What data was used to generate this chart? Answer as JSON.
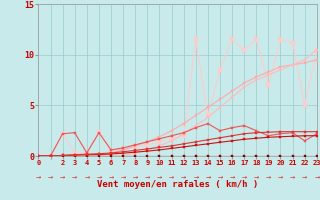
{
  "x": [
    0,
    1,
    2,
    3,
    4,
    5,
    6,
    7,
    8,
    9,
    10,
    11,
    12,
    13,
    14,
    15,
    16,
    17,
    18,
    19,
    20,
    21,
    22,
    23
  ],
  "bg_color": "#c8eaea",
  "grid_color": "#99cccc",
  "xlabel": "Vent moyen/en rafales ( km/h )",
  "yticks": [
    0,
    5,
    10,
    15
  ],
  "ylim": [
    0,
    15
  ],
  "xlim": [
    0,
    23
  ],
  "lines": [
    {
      "y": [
        0,
        0,
        0,
        0,
        0,
        0,
        0,
        0,
        0,
        0,
        0,
        0,
        0,
        0,
        0,
        0,
        0,
        0,
        0,
        0,
        0,
        0,
        0,
        0
      ],
      "color": "#880000",
      "lw": 0.8,
      "marker": "s",
      "ms": 1.8,
      "zorder": 5
    },
    {
      "y": [
        0,
        0,
        0.05,
        0.1,
        0.12,
        0.15,
        0.2,
        0.28,
        0.38,
        0.48,
        0.6,
        0.75,
        0.9,
        1.05,
        1.2,
        1.35,
        1.5,
        1.65,
        1.75,
        1.85,
        1.9,
        1.95,
        2.0,
        2.0
      ],
      "color": "#cc1111",
      "lw": 0.8,
      "marker": "s",
      "ms": 1.8,
      "zorder": 5
    },
    {
      "y": [
        0,
        0,
        0.05,
        0.12,
        0.18,
        0.22,
        0.3,
        0.42,
        0.55,
        0.7,
        0.85,
        1.0,
        1.2,
        1.4,
        1.6,
        1.8,
        2.0,
        2.2,
        2.3,
        2.35,
        2.4,
        2.4,
        2.4,
        2.4
      ],
      "color": "#dd3333",
      "lw": 0.8,
      "marker": "s",
      "ms": 1.8,
      "zorder": 5
    },
    {
      "y": [
        0,
        0,
        2.2,
        2.3,
        0.3,
        2.3,
        0.6,
        0.8,
        1.1,
        1.4,
        1.7,
        2.0,
        2.3,
        2.8,
        3.2,
        2.5,
        2.8,
        3.0,
        2.5,
        2.0,
        2.2,
        2.3,
        1.5,
        2.2
      ],
      "color": "#ee5555",
      "lw": 0.8,
      "marker": "s",
      "ms": 1.8,
      "zorder": 4
    },
    {
      "y": [
        0,
        0,
        0,
        0,
        0,
        0,
        0.3,
        0.6,
        1.0,
        1.4,
        1.9,
        2.5,
        3.2,
        4.0,
        4.8,
        5.6,
        6.4,
        7.2,
        7.8,
        8.3,
        8.8,
        9.0,
        9.2,
        9.5
      ],
      "color": "#ffaaaa",
      "lw": 0.8,
      "marker": "s",
      "ms": 1.8,
      "zorder": 3
    },
    {
      "y": [
        0,
        0,
        0,
        0,
        0,
        0,
        0,
        0,
        0.3,
        0.6,
        1.0,
        1.5,
        2.2,
        3.0,
        3.8,
        4.8,
        5.8,
        6.8,
        7.5,
        8.0,
        8.5,
        9.0,
        9.5,
        10.5
      ],
      "color": "#ffbbbb",
      "lw": 0.8,
      "marker": "s",
      "ms": 1.8,
      "zorder": 3
    },
    {
      "y": [
        0,
        0,
        2.2,
        0.3,
        0.3,
        2.4,
        0.5,
        0.7,
        0.9,
        1.1,
        1.4,
        1.7,
        2.0,
        11.5,
        4.0,
        8.5,
        11.5,
        10.5,
        11.5,
        7.0,
        11.5,
        11.2,
        5.0,
        10.5
      ],
      "color": "#ffcccc",
      "lw": 0.8,
      "marker": "s",
      "ms": 2.5,
      "zorder": 2
    }
  ],
  "arrow_row": "→",
  "xtick_fontsize": 5.0,
  "ytick_fontsize": 6.0,
  "xlabel_fontsize": 6.5,
  "tick_color": "#cc0000"
}
